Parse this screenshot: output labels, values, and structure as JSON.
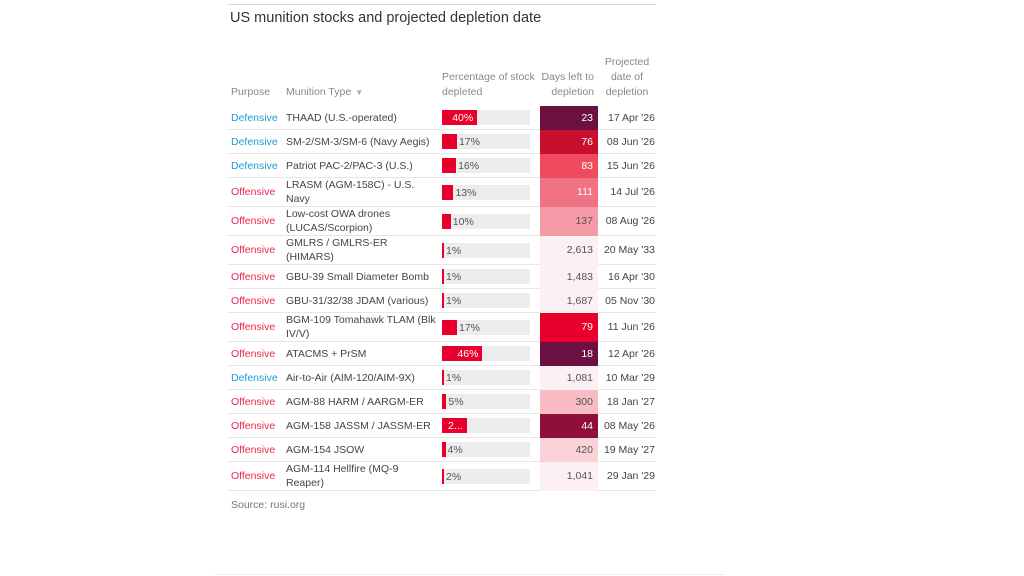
{
  "title": "US munition stocks and projected depletion date",
  "headers": {
    "purpose": "Purpose",
    "type": "Munition Type",
    "pct": "Percentage of stock depleted",
    "days": "Days left to depletion",
    "date": "Projected date of depletion"
  },
  "sort_icon": "triangle-down-icon",
  "colors": {
    "defensive": "#1f9ad6",
    "offensive": "#e8294b",
    "bar": "#e8002d",
    "bar_track": "#ececec"
  },
  "rows": [
    {
      "purpose": "Defensive",
      "type": "THAAD (U.S.-operated)",
      "pct": 40,
      "pct_label": "40%",
      "days": "23",
      "days_color": "#6b1040",
      "date": "17 Apr '26"
    },
    {
      "purpose": "Defensive",
      "type": "SM-2/SM-3/SM-6 (Navy Aegis)",
      "pct": 17,
      "pct_label": "17%",
      "days": "76",
      "days_color": "#c8102e",
      "date": "08 Jun '26"
    },
    {
      "purpose": "Defensive",
      "type": "Patriot PAC-2/PAC-3 (U.S.)",
      "pct": 16,
      "pct_label": "16%",
      "days": "83",
      "days_color": "#f04a5f",
      "date": "15 Jun '26"
    },
    {
      "purpose": "Offensive",
      "type": "LRASM (AGM-158C) - U.S. Navy",
      "pct": 13,
      "pct_label": "13%",
      "days": "111",
      "days_color": "#f07385",
      "date": "14 Jul '26"
    },
    {
      "purpose": "Offensive",
      "type": "Low-cost OWA drones (LUCAS/Scorpion)",
      "pct": 10,
      "pct_label": "10%",
      "days": "137",
      "days_color": "#f59aa6",
      "date": "08 Aug '26"
    },
    {
      "purpose": "Offensive",
      "type": "GMLRS / GMLRS-ER (HIMARS)",
      "pct": 1,
      "pct_label": "1%",
      "days": "2,613",
      "days_color": "#fdf0f2",
      "date": "20 May '33"
    },
    {
      "purpose": "Offensive",
      "type": "GBU-39 Small Diameter Bomb",
      "pct": 1,
      "pct_label": "1%",
      "days": "1,483",
      "days_color": "#fdf0f2",
      "date": "16 Apr '30"
    },
    {
      "purpose": "Offensive",
      "type": "GBU-31/32/38 JDAM (various)",
      "pct": 1,
      "pct_label": "1%",
      "days": "1,687",
      "days_color": "#fdf0f2",
      "date": "05 Nov '30"
    },
    {
      "purpose": "Offensive",
      "type": "BGM-109 Tomahawk TLAM (Blk IV/V)",
      "pct": 17,
      "pct_label": "17%",
      "days": "79",
      "days_color": "#e8002d",
      "date": "11 Jun '26"
    },
    {
      "purpose": "Offensive",
      "type": "ATACMS + PrSM",
      "pct": 46,
      "pct_label": "46%",
      "days": "18",
      "days_color": "#6b1040",
      "date": "12 Apr '26"
    },
    {
      "purpose": "Defensive",
      "type": "Air-to-Air (AIM-120/AIM-9X)",
      "pct": 1,
      "pct_label": "1%",
      "days": "1,081",
      "days_color": "#fdf0f2",
      "date": "10 Mar '29"
    },
    {
      "purpose": "Offensive",
      "type": "AGM-88 HARM / AARGM-ER",
      "pct": 5,
      "pct_label": "5%",
      "days": "300",
      "days_color": "#f8bcc4",
      "date": "18 Jan '27"
    },
    {
      "purpose": "Offensive",
      "type": "AGM-158 JASSM / JASSM-ER",
      "pct": 28,
      "pct_label": "2...",
      "days": "44",
      "days_color": "#8e0f3a",
      "date": "08 May '26"
    },
    {
      "purpose": "Offensive",
      "type": "AGM-154 JSOW",
      "pct": 4,
      "pct_label": "4%",
      "days": "420",
      "days_color": "#fad3d8",
      "date": "19 May '27"
    },
    {
      "purpose": "Offensive",
      "type": "AGM-114 Hellfire (MQ-9 Reaper)",
      "pct": 2,
      "pct_label": "2%",
      "days": "1,041",
      "days_color": "#fdf0f2",
      "date": "29 Jan '29"
    }
  ],
  "source": "Source: rusi.org"
}
